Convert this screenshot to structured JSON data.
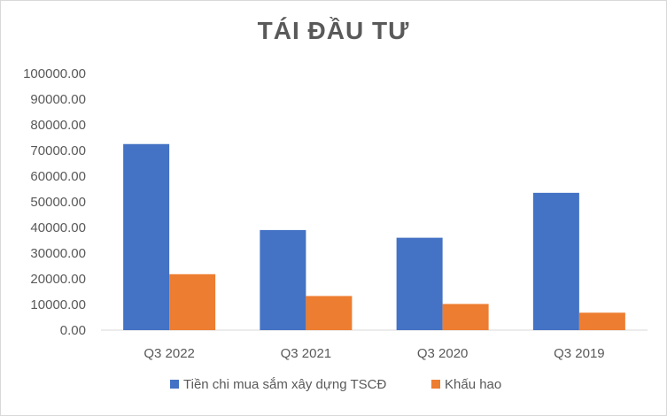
{
  "chart_data": {
    "type": "bar",
    "title": "TÁI ĐẦU TƯ",
    "categories": [
      "Q3 2022",
      "Q3 2021",
      "Q3 2020",
      "Q3 2019"
    ],
    "series": [
      {
        "name": "Tiền chi mua sắm xây dựng TSCĐ",
        "values": [
          72500,
          39000,
          36000,
          53500
        ],
        "color": "#4472c4"
      },
      {
        "name": "Khấu hao",
        "values": [
          21800,
          13300,
          10200,
          6800
        ],
        "color": "#ed7d31"
      }
    ],
    "yticks": [
      "0.00",
      "10000.00",
      "20000.00",
      "30000.00",
      "40000.00",
      "50000.00",
      "60000.00",
      "70000.00",
      "80000.00",
      "90000.00",
      "100000.00"
    ],
    "ylim": [
      0,
      100000
    ],
    "grid": false,
    "legend": "bottom",
    "axis_color": "#d9d9d9",
    "text_color": "#595959"
  }
}
